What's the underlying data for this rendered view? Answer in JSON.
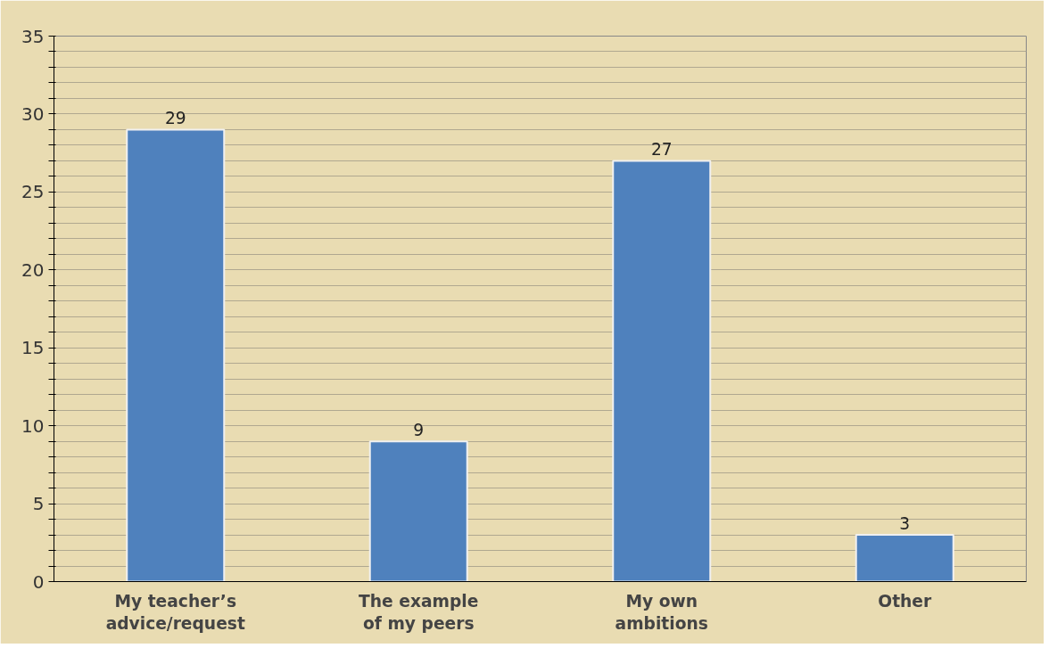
{
  "chart_data": {
    "type": "bar",
    "categories": [
      "My teacher’s advice/request",
      "The example of my peers",
      "My own ambitions",
      "Other"
    ],
    "values": [
      29,
      9,
      27,
      3
    ],
    "color": "#4f81bd",
    "ylim": [
      0,
      35
    ],
    "yticks": [
      0,
      {
        "value": 1,
        "label": null
      },
      {
        "value": 2,
        "label": null
      },
      {
        "value": 3,
        "label": null
      },
      {
        "value": 4,
        "label": null
      },
      5,
      {
        "value": 6,
        "label": null
      },
      {
        "value": 7,
        "label": null
      },
      {
        "value": 8,
        "label": null
      },
      {
        "value": 9,
        "label": null
      },
      10,
      {
        "value": 11,
        "label": null
      },
      {
        "value": 12,
        "label": null
      },
      {
        "value": 13,
        "label": null
      },
      {
        "value": 14,
        "label": null
      },
      15,
      {
        "value": 16,
        "label": null
      },
      {
        "value": 17,
        "label": null
      },
      {
        "value": 18,
        "label": null
      },
      {
        "value": 19,
        "label": null
      },
      20,
      {
        "value": 21,
        "label": null
      },
      {
        "value": 22,
        "label": null
      },
      {
        "value": 23,
        "label": null
      },
      {
        "value": 24,
        "label": null
      },
      25,
      {
        "value": 26,
        "label": null
      },
      {
        "value": 27,
        "label": null
      },
      {
        "value": 28,
        "label": null
      },
      {
        "value": 29,
        "label": null
      },
      30,
      {
        "value": 31,
        "label": null
      },
      {
        "value": 32,
        "label": null
      },
      {
        "value": 33,
        "label": null
      },
      {
        "value": 34,
        "label": null
      },
      35
    ],
    "grid": "y",
    "data_labels": true
  }
}
